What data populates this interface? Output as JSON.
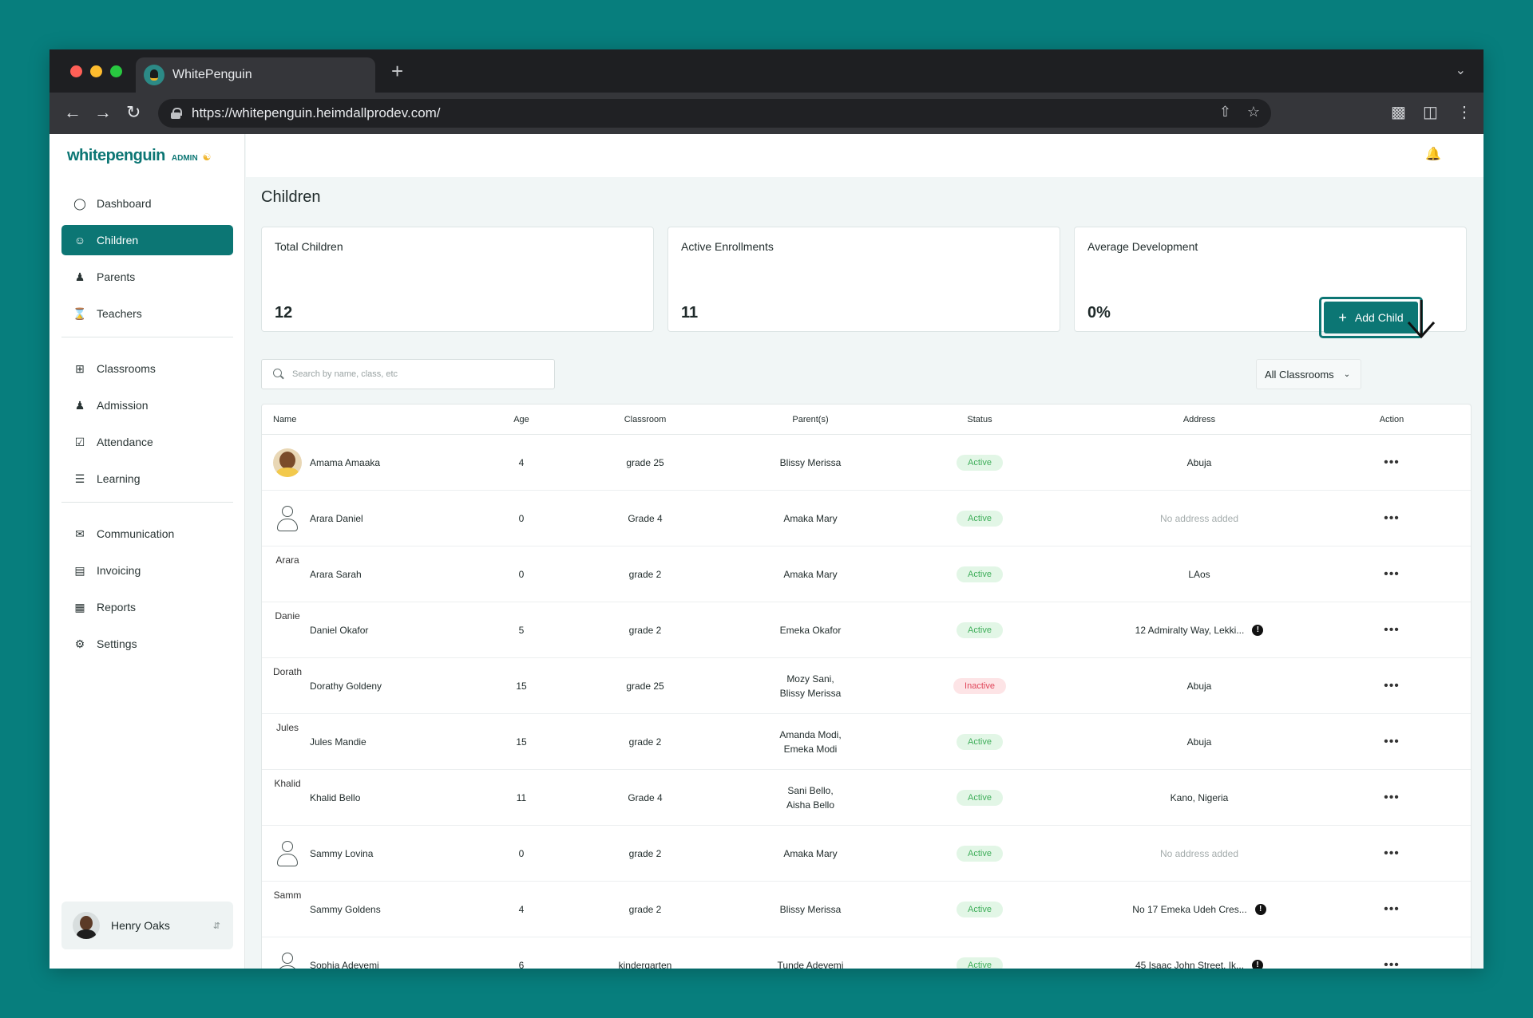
{
  "browser": {
    "tab_title": "WhitePenguin",
    "url": "https://whitepenguin.heimdallprodev.com/"
  },
  "app": {
    "logo_text": "whitepenguin",
    "logo_badge": "ADMIN"
  },
  "sidebar": {
    "items": [
      {
        "label": "Dashboard",
        "icon": "dashboard-icon"
      },
      {
        "label": "Children",
        "icon": "children-icon"
      },
      {
        "label": "Parents",
        "icon": "parents-icon"
      },
      {
        "label": "Teachers",
        "icon": "teachers-icon"
      },
      {
        "label": "Classrooms",
        "icon": "classrooms-icon"
      },
      {
        "label": "Admission",
        "icon": "admission-icon"
      },
      {
        "label": "Attendance",
        "icon": "attendance-icon"
      },
      {
        "label": "Learning",
        "icon": "learning-icon"
      },
      {
        "label": "Communication",
        "icon": "communication-icon"
      },
      {
        "label": "Invoicing",
        "icon": "invoicing-icon"
      },
      {
        "label": "Reports",
        "icon": "reports-icon"
      },
      {
        "label": "Settings",
        "icon": "settings-icon"
      }
    ],
    "active": "Children",
    "user_name": "Henry Oaks"
  },
  "page": {
    "title": "Children"
  },
  "stats": [
    {
      "label": "Total Children",
      "value": "12"
    },
    {
      "label": "Active Enrollments",
      "value": "11"
    },
    {
      "label": "Average Development",
      "value": "0%"
    }
  ],
  "filters": {
    "search_placeholder": "Search by name, class, etc",
    "classroom_select": "All Classrooms",
    "add_button": "Add Child"
  },
  "table": {
    "headers": [
      "Name",
      "Age",
      "Classroom",
      "Parent(s)",
      "Status",
      "Address",
      "Action"
    ],
    "rows": [
      {
        "avatar_type": "photo",
        "avatar_alt": "",
        "name": "Amama Amaaka",
        "age": "4",
        "classroom": "grade 25",
        "parents": [
          "Blissy Merissa"
        ],
        "status": "Active",
        "address": "Abuja",
        "address_info": false
      },
      {
        "avatar_type": "person",
        "avatar_alt": "",
        "name": "Arara Daniel",
        "age": "0",
        "classroom": "Grade 4",
        "parents": [
          "Amaka Mary"
        ],
        "status": "Active",
        "address": "No address added",
        "address_info": false
      },
      {
        "avatar_type": "alt",
        "avatar_alt": "Arara",
        "name": "Arara Sarah",
        "age": "0",
        "classroom": "grade 2",
        "parents": [
          "Amaka Mary"
        ],
        "status": "Active",
        "address": "LAos",
        "address_info": false
      },
      {
        "avatar_type": "alt",
        "avatar_alt": "Danie",
        "name": "Daniel Okafor",
        "age": "5",
        "classroom": "grade 2",
        "parents": [
          "Emeka Okafor"
        ],
        "status": "Active",
        "address": "12 Admiralty Way, Lekki...",
        "address_info": true
      },
      {
        "avatar_type": "alt",
        "avatar_alt": "Dorath",
        "name": "Dorathy Goldeny",
        "age": "15",
        "classroom": "grade 25",
        "parents": [
          "Mozy Sani,",
          "Blissy Merissa"
        ],
        "status": "Inactive",
        "address": "Abuja",
        "address_info": false
      },
      {
        "avatar_type": "alt",
        "avatar_alt": "Jules",
        "name": "Jules Mandie",
        "age": "15",
        "classroom": "grade 2",
        "parents": [
          "Amanda Modi,",
          "Emeka Modi"
        ],
        "status": "Active",
        "address": "Abuja",
        "address_info": false
      },
      {
        "avatar_type": "alt",
        "avatar_alt": "Khalid",
        "name": "Khalid Bello",
        "age": "11",
        "classroom": "Grade 4",
        "parents": [
          "Sani Bello,",
          "Aisha Bello"
        ],
        "status": "Active",
        "address": "Kano, Nigeria",
        "address_info": false
      },
      {
        "avatar_type": "person",
        "avatar_alt": "",
        "name": "Sammy Lovina",
        "age": "0",
        "classroom": "grade 2",
        "parents": [
          "Amaka Mary"
        ],
        "status": "Active",
        "address": "No address added",
        "address_info": false
      },
      {
        "avatar_type": "alt",
        "avatar_alt": "Samm",
        "name": "Sammy Goldens",
        "age": "4",
        "classroom": "grade 2",
        "parents": [
          "Blissy Merissa"
        ],
        "status": "Active",
        "address": "No 17 Emeka Udeh Cres...",
        "address_info": true
      },
      {
        "avatar_type": "person",
        "avatar_alt": "",
        "name": "Sophia Adeyemi",
        "age": "6",
        "classroom": "kindergarten",
        "parents": [
          "Tunde Adeyemi"
        ],
        "status": "Active",
        "address": "45 Isaac John Street, Ik...",
        "address_info": true
      }
    ]
  },
  "colors": {
    "background": "#077e7d",
    "accent": "#0c7674",
    "status_active": "#3fae5a",
    "status_inactive": "#e0465a"
  }
}
